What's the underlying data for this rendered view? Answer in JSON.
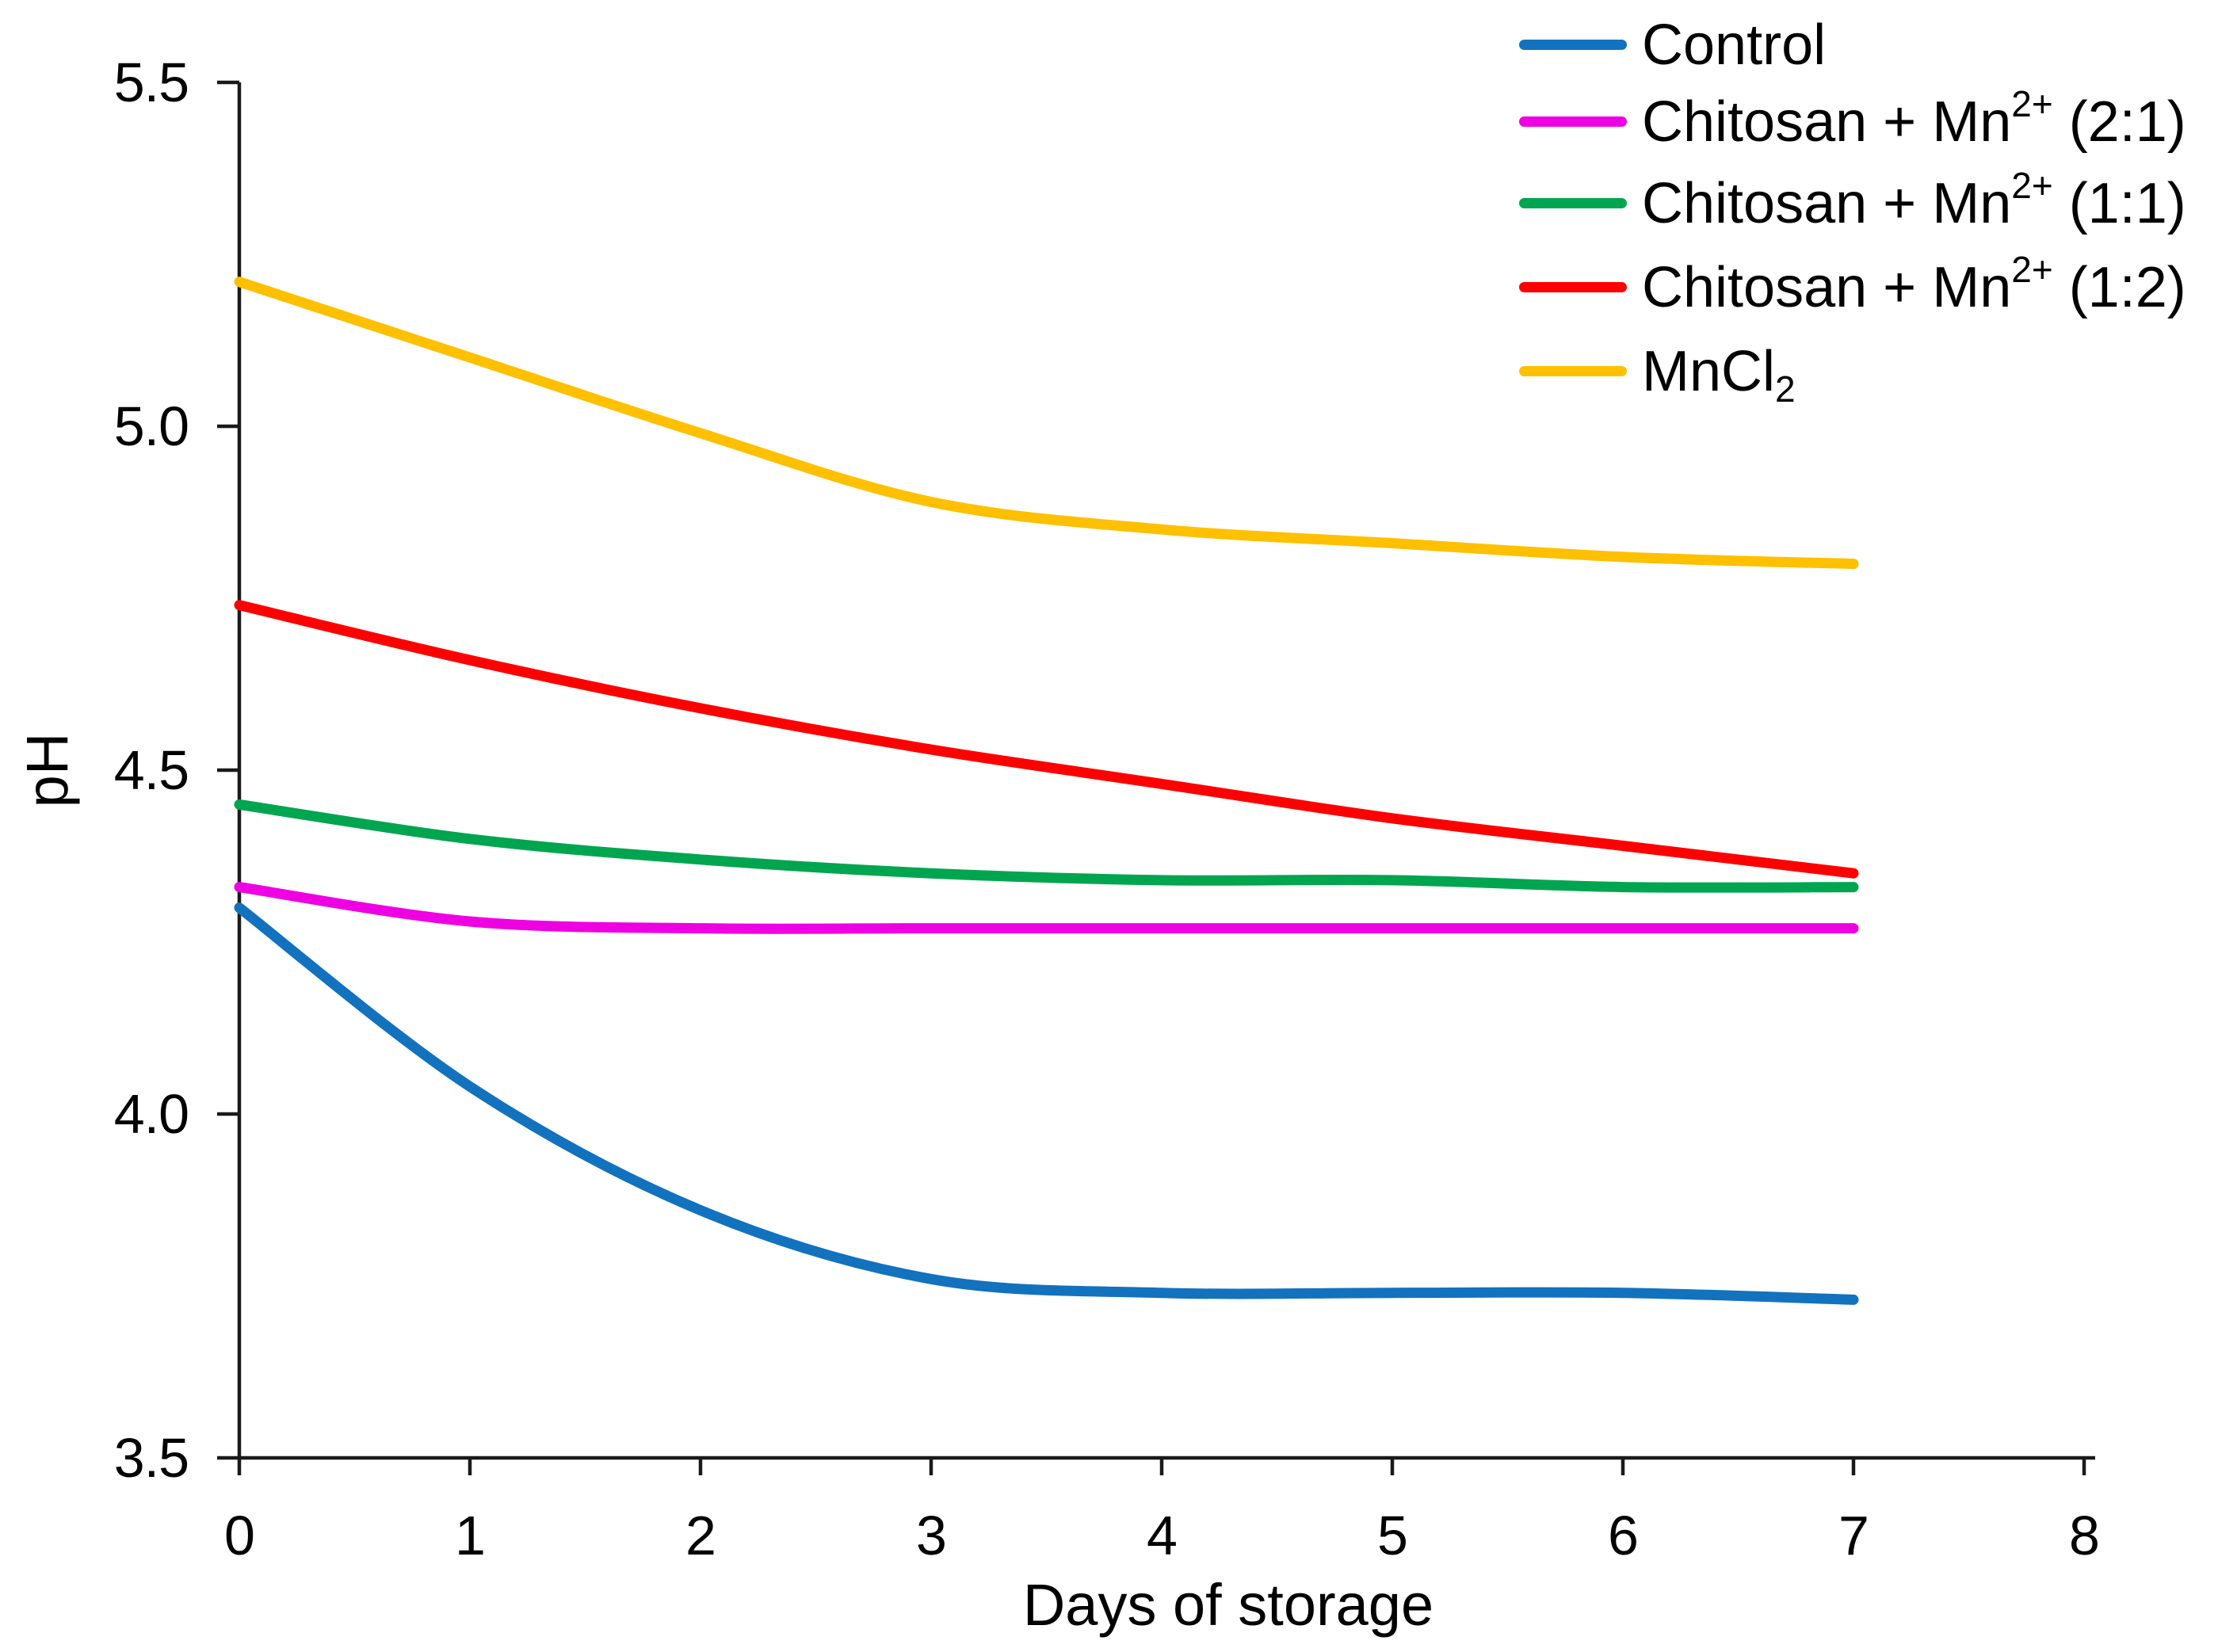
{
  "chart_data": {
    "type": "line",
    "title": "",
    "xlabel": "Days of storage",
    "ylabel": "pH",
    "xlim": [
      0,
      8
    ],
    "ylim": [
      3.5,
      5.5
    ],
    "grid": false,
    "line_smoothing": true,
    "legend_position": "top-right",
    "x_ticks": [
      {
        "value": 0,
        "label": "0"
      },
      {
        "value": 1,
        "label": "1"
      },
      {
        "value": 2,
        "label": "2"
      },
      {
        "value": 3,
        "label": "3"
      },
      {
        "value": 4,
        "label": "4"
      },
      {
        "value": 5,
        "label": "5"
      },
      {
        "value": 6,
        "label": "6"
      },
      {
        "value": 7,
        "label": "7"
      },
      {
        "value": 8,
        "label": "8"
      }
    ],
    "y_ticks": [
      {
        "value": 3.5,
        "label": "3.5"
      },
      {
        "value": 4.0,
        "label": "4.0"
      },
      {
        "value": 4.5,
        "label": "4.5"
      },
      {
        "value": 5.0,
        "label": "5.0"
      },
      {
        "value": 5.5,
        "label": "5.5"
      }
    ],
    "x": [
      0,
      1,
      2,
      3,
      4,
      5,
      6,
      7
    ],
    "series": [
      {
        "name": "Control",
        "color": "#1272BE",
        "values": [
          4.3,
          4.04,
          3.86,
          3.76,
          3.74,
          3.74,
          3.74,
          3.73
        ]
      },
      {
        "name": "Chitosan + Mn2+ (2:1)",
        "color": "#EE00E2",
        "values": [
          4.33,
          4.28,
          4.27,
          4.27,
          4.27,
          4.27,
          4.27,
          4.27
        ]
      },
      {
        "name": "Chitosan + Mn2+ (1:1)",
        "color": "#00A54F",
        "values": [
          4.45,
          4.4,
          4.37,
          4.35,
          4.34,
          4.34,
          4.33,
          4.33
        ]
      },
      {
        "name": "Chitosan + Mn2+ (1:2)",
        "color": "#FE0000",
        "values": [
          4.74,
          4.66,
          4.59,
          4.53,
          4.48,
          4.43,
          4.39,
          4.35
        ]
      },
      {
        "name": "MnCl2",
        "color": "#FFC000",
        "values": [
          5.21,
          5.1,
          4.99,
          4.89,
          4.85,
          4.83,
          4.81,
          4.8
        ]
      }
    ]
  },
  "legend": {
    "items": [
      {
        "pre": "Control",
        "sup": "",
        "post": "",
        "sub": ""
      },
      {
        "pre": "Chitosan + Mn",
        "sup": "2+",
        "post": " (2:1)",
        "sub": ""
      },
      {
        "pre": "Chitosan + Mn",
        "sup": "2+",
        "post": " (1:1)",
        "sub": ""
      },
      {
        "pre": "Chitosan + Mn",
        "sup": "2+",
        "post": " (1:2)",
        "sub": ""
      },
      {
        "pre": "MnCl",
        "sup": "",
        "post": "",
        "sub": "2"
      }
    ]
  },
  "axis_color": "#1a1a1a"
}
